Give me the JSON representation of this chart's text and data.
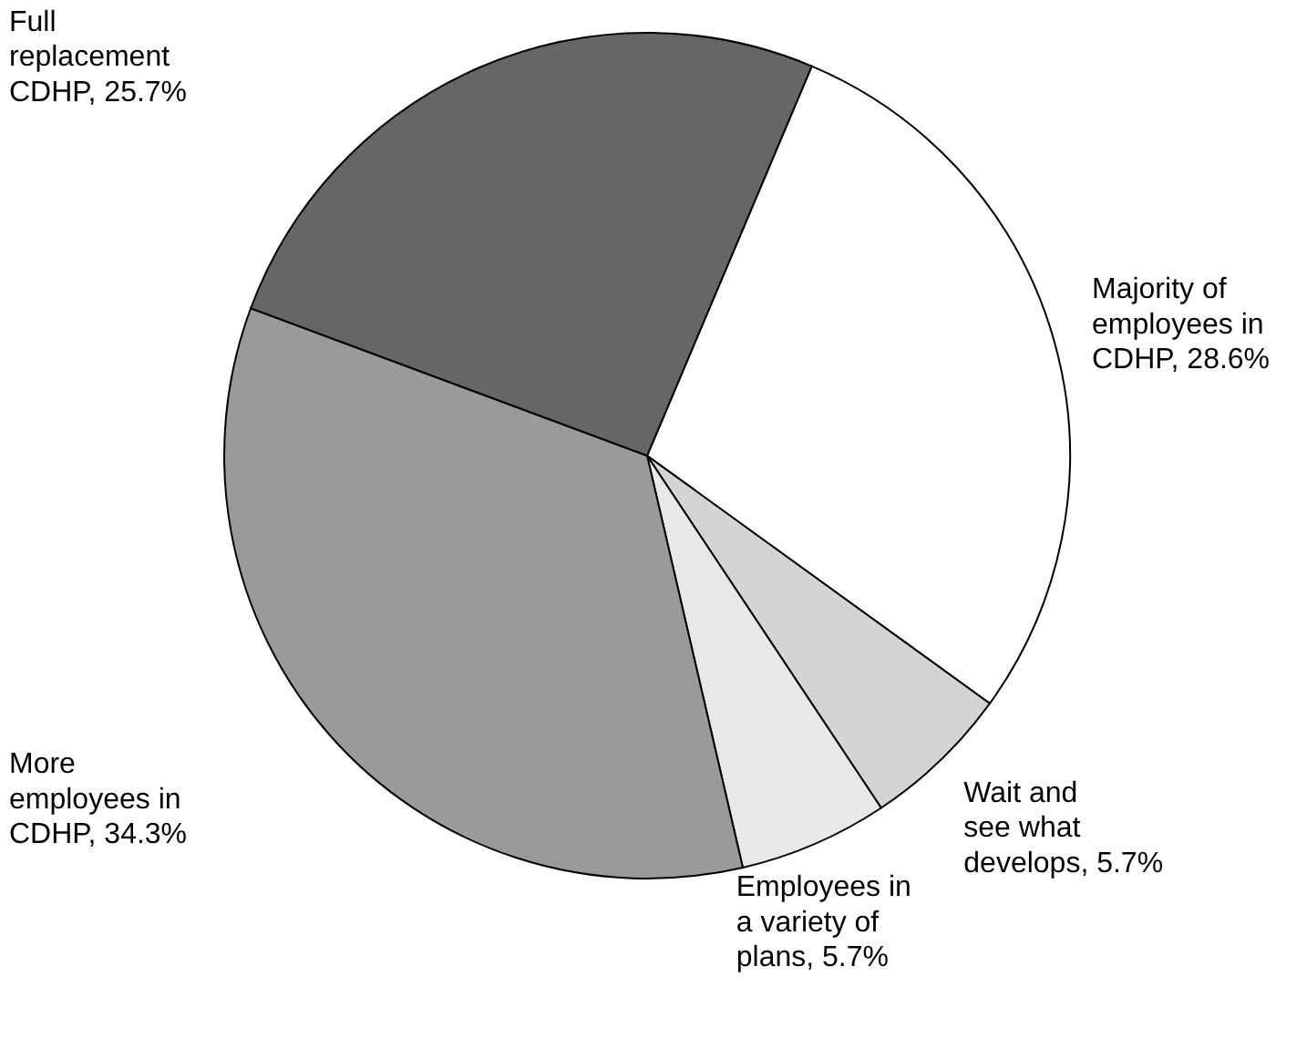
{
  "chart_data": {
    "type": "pie",
    "categories": [
      "Majority of employees in CDHP",
      "Wait and see what develops",
      "Employees in a variety of plans",
      "More employees in CDHP",
      "Full replacement CDHP"
    ],
    "values": [
      28.6,
      5.7,
      5.7,
      34.3,
      25.7
    ],
    "value_labels": [
      "28.6%",
      "5.7%",
      "5.7%",
      "34.3%",
      "25.7%"
    ],
    "colors": [
      "#ffffff",
      "#d4d4d4",
      "#e8e8e8",
      "#9a9a9c",
      "#666668"
    ]
  }
}
